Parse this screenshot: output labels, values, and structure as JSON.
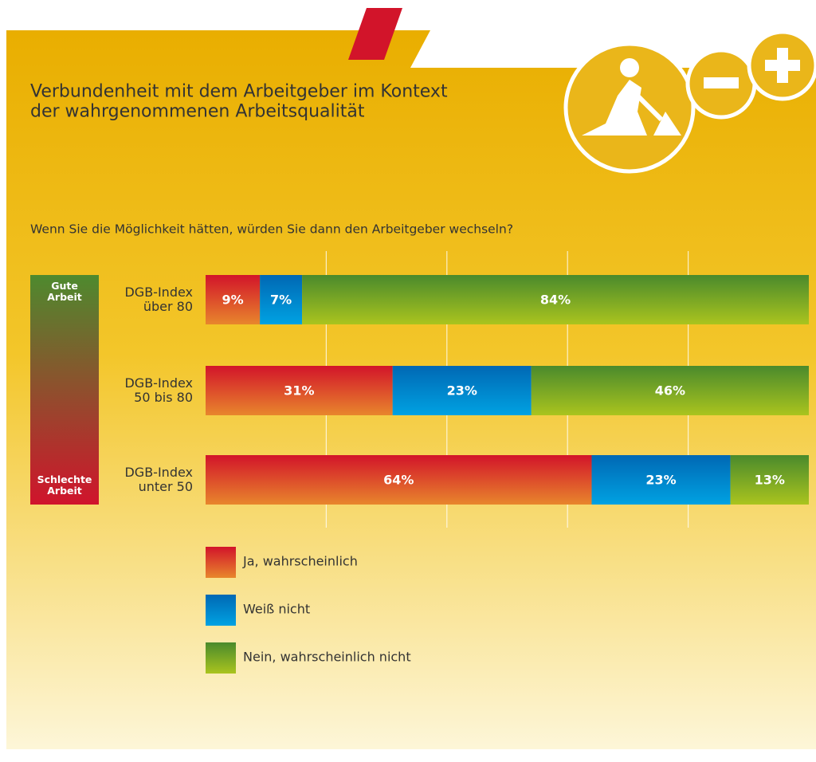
{
  "chart_data": {
    "type": "stacked-bar-horizontal",
    "title": "Verbundenheit mit dem Arbeitgeber im Kontext\nder wahrgenommenen Arbeitsqualität",
    "subtitle": "Wenn Sie die Möglichkeit hätten, würden Sie dann den Arbeitgeber wechseln?",
    "scale_labels": [
      "Gute\nArbeit",
      "Schlechte\nArbeit"
    ],
    "scale_colors": [
      "#4e8a2e",
      "#d0142c"
    ],
    "categories": [
      "DGB-Index\nüber 80",
      "DGB-Index\n50 bis 80",
      "DGB-Index\nunter 50"
    ],
    "series": [
      {
        "name": "Ja, wahrscheinlich",
        "color": [
          "#d2142a",
          "#e8862c"
        ],
        "values": [
          9,
          31,
          64
        ],
        "value_labels": [
          "9%",
          "31%",
          "64%"
        ]
      },
      {
        "name": "Weiß nicht",
        "color": [
          "#0068b4",
          "#00a2e2"
        ],
        "values": [
          7,
          23,
          23
        ],
        "value_labels": [
          "7%",
          "23%",
          "23%"
        ]
      },
      {
        "name": "Nein, wahrscheinlich nicht",
        "color": [
          "#4a8a2c",
          "#aac41e"
        ],
        "values": [
          84,
          46,
          13
        ],
        "value_labels": [
          "84%",
          "46%",
          "13%"
        ]
      }
    ],
    "xlim": [
      0,
      100
    ],
    "xticks": [
      20,
      40,
      60,
      80
    ],
    "grid": true
  }
}
